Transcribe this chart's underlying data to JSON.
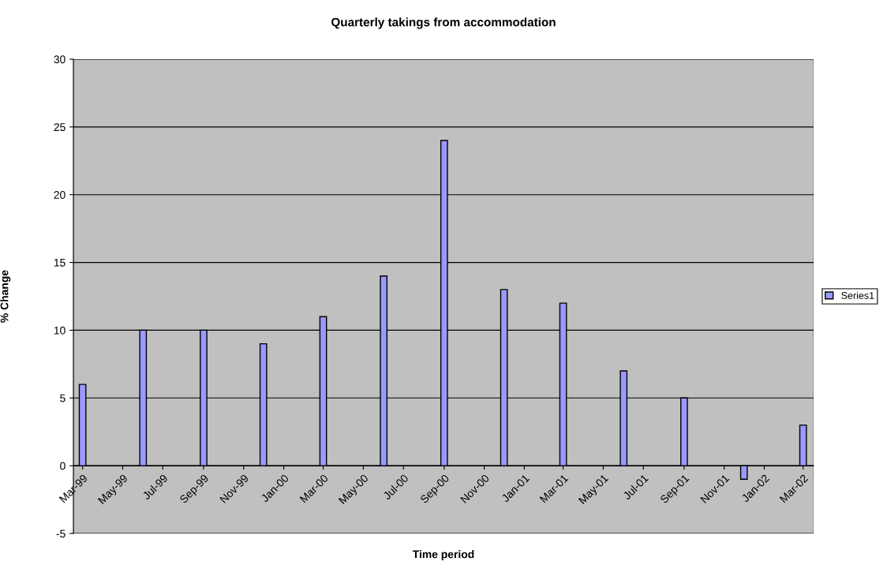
{
  "chart_data": {
    "type": "bar",
    "title": "Quarterly takings from accommodation",
    "xlabel": "Time period",
    "ylabel": "% Change",
    "x": [
      "1999-03",
      "1999-06",
      "1999-09",
      "1999-12",
      "2000-03",
      "2000-06",
      "2000-09",
      "2000-12",
      "2001-03",
      "2001-06",
      "2001-09",
      "2001-12",
      "2002-03"
    ],
    "series": [
      {
        "name": "Series1",
        "color": "#9999ff",
        "values": [
          6,
          10,
          10,
          9,
          11,
          14,
          24,
          13,
          12,
          7,
          5,
          -1,
          3
        ]
      }
    ],
    "xlim": [
      "1999-02-15",
      "2002-03-17"
    ],
    "xticks": [
      {
        "value": "1999-03",
        "label": "Mar-99"
      },
      {
        "value": "1999-05",
        "label": "May-99"
      },
      {
        "value": "1999-07",
        "label": "Jul-99"
      },
      {
        "value": "1999-09",
        "label": "Sep-99"
      },
      {
        "value": "1999-11",
        "label": "Nov-99"
      },
      {
        "value": "2000-01",
        "label": "Jan-00"
      },
      {
        "value": "2000-03",
        "label": "Mar-00"
      },
      {
        "value": "2000-05",
        "label": "May-00"
      },
      {
        "value": "2000-07",
        "label": "Jul-00"
      },
      {
        "value": "2000-09",
        "label": "Sep-00"
      },
      {
        "value": "2000-11",
        "label": "Nov-00"
      },
      {
        "value": "2001-01",
        "label": "Jan-01"
      },
      {
        "value": "2001-03",
        "label": "Mar-01"
      },
      {
        "value": "2001-05",
        "label": "May-01"
      },
      {
        "value": "2001-07",
        "label": "Jul-01"
      },
      {
        "value": "2001-09",
        "label": "Sep-01"
      },
      {
        "value": "2001-11",
        "label": "Nov-01"
      },
      {
        "value": "2002-01",
        "label": "Jan-02"
      },
      {
        "value": "2002-03",
        "label": "Mar-02"
      }
    ],
    "ylim": [
      -5,
      30
    ],
    "yticks": [
      -5,
      0,
      5,
      10,
      15,
      20,
      25,
      30
    ],
    "grid": "y",
    "legend": "right"
  }
}
